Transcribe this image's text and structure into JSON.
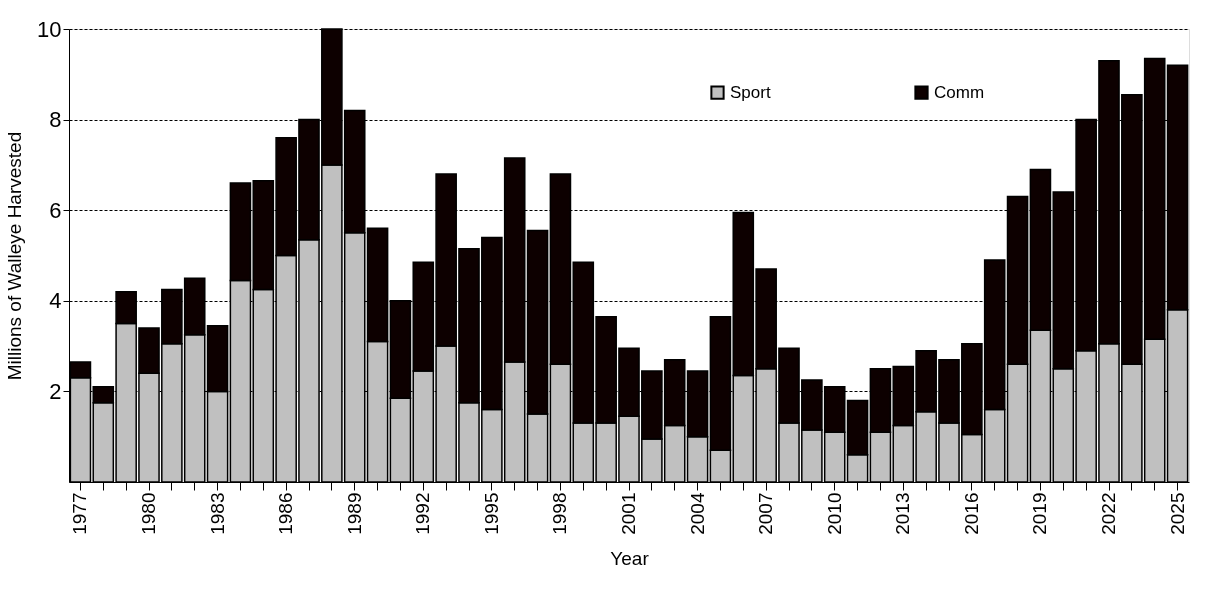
{
  "chart_data": {
    "type": "bar",
    "stacked": true,
    "xlabel": "Year",
    "ylabel": "Millions of Walleye Harvested",
    "categories": [
      "1977",
      null,
      null,
      "1980",
      null,
      null,
      "1983",
      null,
      null,
      "1986",
      null,
      null,
      "1989",
      null,
      null,
      "1992",
      null,
      null,
      "1995",
      null,
      null,
      "1998",
      null,
      null,
      "2001",
      null,
      null,
      "2004",
      null,
      null,
      "2007",
      null,
      null,
      "2010",
      null,
      null,
      "2013",
      null,
      null,
      "2016",
      null,
      null,
      "2019",
      null,
      null,
      "2022",
      null,
      null,
      "2025"
    ],
    "series": [
      {
        "name": "Sport",
        "color": "#c0c0c0",
        "values": [
          2.3,
          1.75,
          3.5,
          2.4,
          3.05,
          3.25,
          2.0,
          4.45,
          4.25,
          5.0,
          5.35,
          7.0,
          5.5,
          3.1,
          1.85,
          2.45,
          3.0,
          1.75,
          1.6,
          2.65,
          1.5,
          2.6,
          1.3,
          1.3,
          1.45,
          0.95,
          1.25,
          1.0,
          0.7,
          2.35,
          2.5,
          1.3,
          1.15,
          1.1,
          0.6,
          1.1,
          1.25,
          1.55,
          1.3,
          1.05,
          1.6,
          2.6,
          3.35,
          2.5,
          2.9,
          3.05,
          2.6,
          3.15,
          3.8
        ]
      },
      {
        "name": "Comm",
        "color": "#0d0000",
        "values": [
          0.35,
          0.35,
          0.7,
          1.0,
          1.2,
          1.25,
          1.45,
          2.15,
          2.4,
          2.6,
          2.65,
          3.0,
          2.7,
          2.5,
          2.15,
          2.4,
          3.8,
          3.4,
          3.8,
          4.5,
          4.05,
          4.2,
          3.55,
          2.35,
          1.5,
          1.5,
          1.45,
          1.45,
          2.95,
          3.6,
          2.2,
          1.65,
          1.1,
          1.0,
          1.2,
          1.4,
          1.3,
          1.35,
          1.4,
          2.0,
          3.3,
          3.7,
          3.55,
          3.9,
          5.1,
          6.25,
          5.95,
          6.2,
          5.4
        ]
      }
    ],
    "ylim": [
      0,
      10
    ],
    "yticks": [
      2,
      4,
      6,
      8,
      10
    ],
    "grid": "y",
    "legend": "top right"
  }
}
